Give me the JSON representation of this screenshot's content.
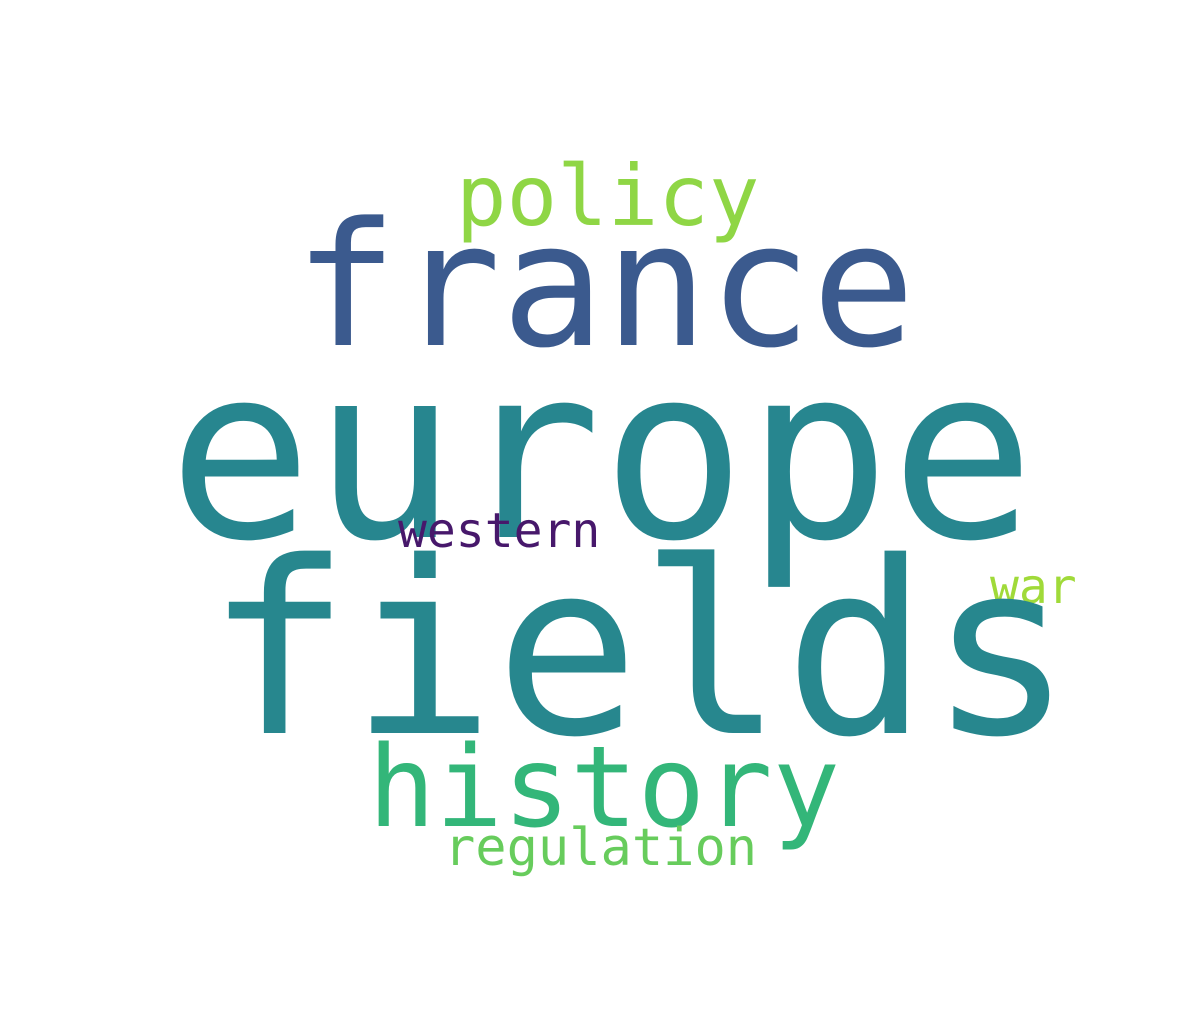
{
  "words": {
    "europe": "europe",
    "fields": "fields",
    "france": "france",
    "history": "history",
    "policy": "policy",
    "regulation": "regulation",
    "western": "western",
    "war": "war"
  },
  "colors": {
    "europe": "#27868f",
    "fields": "#27878e",
    "france": "#3b5a8e",
    "history": "#33b679",
    "policy": "#8fd645",
    "regulation": "#67cc5c",
    "western": "#47186b",
    "war": "#a0da39",
    "background": "#ffffff"
  }
}
